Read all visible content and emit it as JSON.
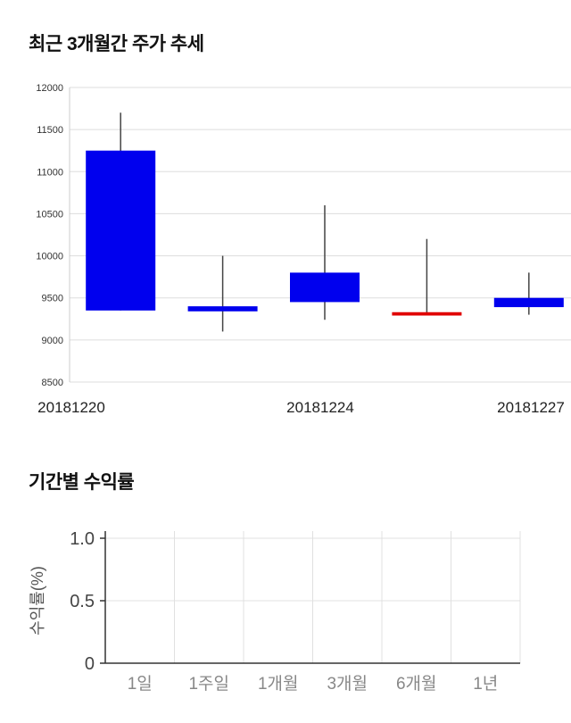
{
  "sections": {
    "price_trend": {
      "title": "최근 3개월간 주가 추세"
    },
    "period_returns": {
      "title": "기간별 수익률"
    }
  },
  "chart_data": [
    {
      "type": "candlestick",
      "title": "최근 3개월간 주가 추세",
      "ylim": [
        8500,
        12000
      ],
      "yticks": [
        8500,
        9000,
        9500,
        10000,
        10500,
        11000,
        11500,
        12000
      ],
      "x_ticks": [
        {
          "label": "20181220",
          "pos": 0
        },
        {
          "label": "20181224",
          "pos": 0.5
        },
        {
          "label": "20181227",
          "pos": 1
        }
      ],
      "colors": {
        "fall": "#0000ee",
        "rise": "#e00000",
        "wick": "#444444",
        "grid": "#dddddd"
      },
      "candles": [
        {
          "date": "20181220",
          "open": 11250,
          "close": 9350,
          "high": 11700,
          "low": 9350,
          "direction": "fall"
        },
        {
          "open": 9400,
          "close": 9340,
          "high": 10000,
          "low": 9100,
          "direction": "fall"
        },
        {
          "date": "20181224",
          "open": 9800,
          "close": 9450,
          "high": 10600,
          "low": 9240,
          "direction": "fall"
        },
        {
          "open": 9290,
          "close": 9330,
          "high": 10200,
          "low": 9290,
          "direction": "rise"
        },
        {
          "date": "20181227",
          "open": 9500,
          "close": 9390,
          "high": 9800,
          "low": 9300,
          "direction": "fall"
        }
      ],
      "legend": "none",
      "grid": true
    },
    {
      "type": "bar",
      "title": "기간별 수익률",
      "ylabel": "수익률(%)",
      "categories": [
        "1일",
        "1주일",
        "1개월",
        "3개월",
        "6개월",
        "1년"
      ],
      "values": [
        0,
        0,
        0,
        0,
        0,
        0
      ],
      "ylim": [
        0,
        1.0
      ],
      "yticks": [
        {
          "label": "0",
          "value": 0
        },
        {
          "label": "0.5",
          "value": 0.5
        },
        {
          "label": "1.0",
          "value": 1.0
        }
      ],
      "grid": true,
      "legend": "none",
      "bar_color": "#4a90d9"
    }
  ]
}
